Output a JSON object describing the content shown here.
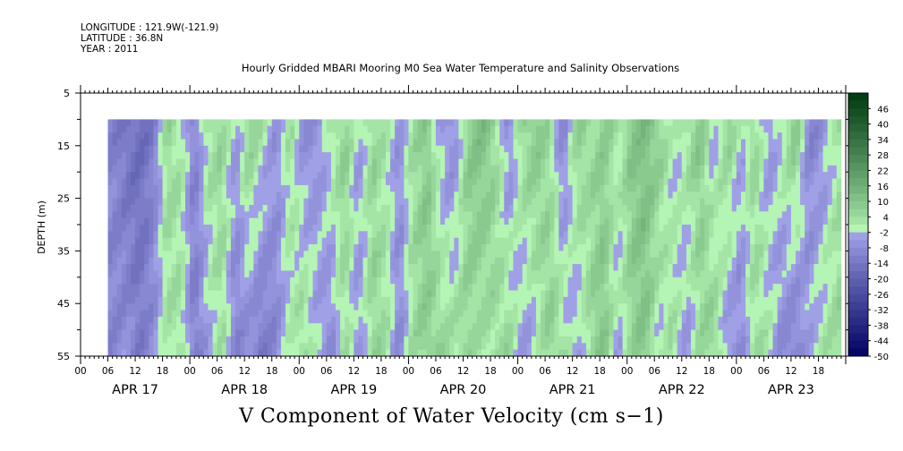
{
  "header": {
    "longitude": "LONGITUDE : 121.9W(-121.9)",
    "latitude": "LATITUDE : 36.8N",
    "year": "YEAR : 2011"
  },
  "chart_data": {
    "type": "heatmap",
    "title": "Hourly Gridded MBARI Mooring M0 Sea Water Temperature and Salinity Observations",
    "bottom_title": "V Component of Water Velocity (cm s−1)",
    "ylabel": "DEPTH (m)",
    "ylim": [
      5,
      55
    ],
    "y_inverted": true,
    "y_ticks": [
      5,
      15,
      25,
      35,
      45,
      55
    ],
    "x_range_hours": [
      0,
      168
    ],
    "x_day_labels": [
      "APR 17",
      "APR 18",
      "APR 19",
      "APR 20",
      "APR 21",
      "APR 22",
      "APR 23"
    ],
    "x_hour_labels": [
      "00",
      "06",
      "12",
      "18"
    ],
    "data_x_start_hour": 6,
    "data_x_end_hour": 167,
    "data_depth_top": 10,
    "data_depth_bottom": 55,
    "colorbar": {
      "labels": [
        "46",
        "40",
        "34",
        "28",
        "22",
        "16",
        "10",
        "4",
        "-2",
        "-8",
        "-14",
        "-20",
        "-26",
        "-32",
        "-38",
        "-44",
        "-50"
      ],
      "range": [
        -50,
        52
      ],
      "low_color": "#000060",
      "mid_low_color": "#b0b0f4",
      "mid_high_color": "#b4f4b4",
      "high_color": "#003a10"
    },
    "velocity_profile_by_hour": [
      {
        "hour": 6,
        "top": -9,
        "bottom": -9
      },
      {
        "hour": 10,
        "top": -14,
        "bottom": -7
      },
      {
        "hour": 13,
        "top": -16,
        "bottom": -12
      },
      {
        "hour": 16,
        "top": -12,
        "bottom": -6
      },
      {
        "hour": 19,
        "top": 6,
        "bottom": 2
      },
      {
        "hour": 22,
        "top": 2,
        "bottom": 4
      },
      {
        "hour": 25,
        "top": -10,
        "bottom": -12
      },
      {
        "hour": 28,
        "top": 4,
        "bottom": -4
      },
      {
        "hour": 31,
        "top": 6,
        "bottom": 4
      },
      {
        "hour": 34,
        "top": -4,
        "bottom": -10
      },
      {
        "hour": 37,
        "top": 8,
        "bottom": -8
      },
      {
        "hour": 40,
        "top": 2,
        "bottom": -14
      },
      {
        "hour": 43,
        "top": -6,
        "bottom": -8
      },
      {
        "hour": 46,
        "top": 4,
        "bottom": 0
      },
      {
        "hour": 49,
        "top": -8,
        "bottom": 6
      },
      {
        "hour": 52,
        "top": -6,
        "bottom": -2
      },
      {
        "hour": 55,
        "top": 2,
        "bottom": -8
      },
      {
        "hour": 58,
        "top": 8,
        "bottom": 4
      },
      {
        "hour": 61,
        "top": -4,
        "bottom": -6
      },
      {
        "hour": 64,
        "top": 6,
        "bottom": 6
      },
      {
        "hour": 67,
        "top": 2,
        "bottom": 4
      },
      {
        "hour": 70,
        "top": -6,
        "bottom": -8
      },
      {
        "hour": 73,
        "top": 4,
        "bottom": 4
      },
      {
        "hour": 76,
        "top": 10,
        "bottom": 8
      },
      {
        "hour": 79,
        "top": -4,
        "bottom": 6
      },
      {
        "hour": 82,
        "top": -8,
        "bottom": 4
      },
      {
        "hour": 85,
        "top": 8,
        "bottom": 6
      },
      {
        "hour": 88,
        "top": 12,
        "bottom": 2
      },
      {
        "hour": 91,
        "top": 6,
        "bottom": 4
      },
      {
        "hour": 94,
        "top": -8,
        "bottom": 6
      },
      {
        "hour": 97,
        "top": 6,
        "bottom": -6
      },
      {
        "hour": 100,
        "top": 10,
        "bottom": -2
      },
      {
        "hour": 103,
        "top": 4,
        "bottom": 8
      },
      {
        "hour": 106,
        "top": -10,
        "bottom": 4
      },
      {
        "hour": 109,
        "top": 8,
        "bottom": -6
      },
      {
        "hour": 112,
        "top": 4,
        "bottom": 6
      },
      {
        "hour": 115,
        "top": 8,
        "bottom": 10
      },
      {
        "hour": 118,
        "top": 2,
        "bottom": -4
      },
      {
        "hour": 121,
        "top": 10,
        "bottom": 6
      },
      {
        "hour": 124,
        "top": 12,
        "bottom": 10
      },
      {
        "hour": 127,
        "top": 8,
        "bottom": -2
      },
      {
        "hour": 130,
        "top": -2,
        "bottom": 4
      },
      {
        "hour": 133,
        "top": 4,
        "bottom": -6
      },
      {
        "hour": 136,
        "top": 10,
        "bottom": 4
      },
      {
        "hour": 139,
        "top": -4,
        "bottom": 8
      },
      {
        "hour": 142,
        "top": 8,
        "bottom": -6
      },
      {
        "hour": 145,
        "top": -2,
        "bottom": -8
      },
      {
        "hour": 148,
        "top": 6,
        "bottom": 4
      },
      {
        "hour": 151,
        "top": -6,
        "bottom": 2
      },
      {
        "hour": 154,
        "top": 2,
        "bottom": -8
      },
      {
        "hour": 157,
        "top": 10,
        "bottom": -12
      },
      {
        "hour": 160,
        "top": -10,
        "bottom": -2
      },
      {
        "hour": 163,
        "top": -6,
        "bottom": 2
      },
      {
        "hour": 167,
        "top": 4,
        "bottom": 6
      }
    ]
  }
}
